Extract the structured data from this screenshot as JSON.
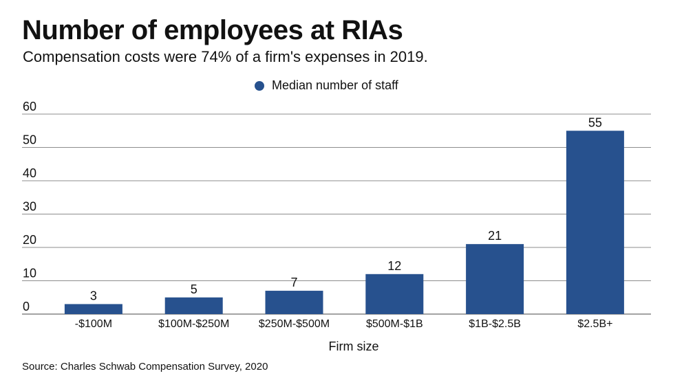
{
  "title": "Number of employees at RIAs",
  "subtitle": "Compensation costs were 74% of a firm's expenses in 2019.",
  "source": "Source: Charles Schwab Compensation Survey, 2020",
  "colors": {
    "bar": "#27518e",
    "grid": "#8c8c8c",
    "axis": "#444444"
  },
  "chart_data": {
    "type": "bar",
    "title": "Number of employees at RIAs",
    "subtitle": "Compensation costs were 74% of a firm's expenses in 2019.",
    "xlabel": "Firm size",
    "ylabel": "",
    "ylim": [
      0,
      60
    ],
    "yticks": [
      0,
      10,
      20,
      30,
      40,
      50,
      60
    ],
    "grid": true,
    "legend_position": "top-center",
    "categories": [
      "-$100M",
      "$100M-$250M",
      "$250M-$500M",
      "$500M-$1B",
      "$1B-$2.5B",
      "$2.5B+"
    ],
    "series": [
      {
        "name": "Median number of staff",
        "values": [
          3,
          5,
          7,
          12,
          21,
          55
        ]
      }
    ],
    "data_labels": true
  }
}
